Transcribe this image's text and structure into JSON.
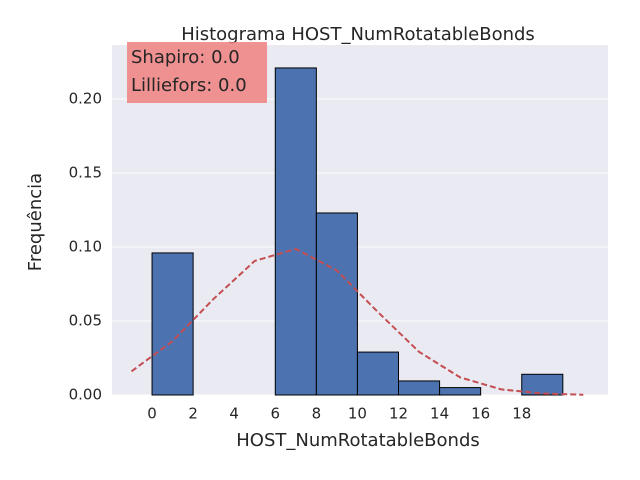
{
  "chart_data": {
    "type": "histogram",
    "title": "Histograma HOST_NumRotatableBonds",
    "xlabel": "HOST_NumRotatableBonds",
    "ylabel": "Frequência",
    "annotations": [
      "Shapiro: 0.0",
      "Lilliefors: 0.0"
    ],
    "bins": [
      0,
      2,
      4,
      6,
      8,
      10,
      12,
      14,
      16,
      18,
      20
    ],
    "values": [
      0.096,
      0,
      0,
      0.221,
      0.123,
      0.029,
      0.0095,
      0.005,
      0,
      0.014
    ],
    "color": "#4c72b0",
    "curve": {
      "type": "line",
      "color": "#c44e52",
      "dashed": true,
      "x": [
        -1,
        1,
        3,
        5,
        7,
        9,
        11,
        13,
        15,
        17,
        19,
        21
      ],
      "values": [
        0.016,
        0.0364,
        0.065,
        0.0906,
        0.0987,
        0.0841,
        0.056,
        0.0292,
        0.0119,
        0.0038,
        0.001,
        0.0002
      ]
    },
    "xlim": [
      -1.95,
      22.2
    ],
    "ylim": [
      0,
      0.2365
    ],
    "xticks": [
      0,
      2,
      4,
      6,
      8,
      10,
      12,
      14,
      16,
      18
    ],
    "yticks": [
      {
        "value": 0,
        "label": "0.00"
      },
      {
        "value": 0.05,
        "label": "0.05"
      },
      {
        "value": 0.1,
        "label": "0.10"
      },
      {
        "value": 0.15,
        "label": "0.15"
      },
      {
        "value": 0.2,
        "label": "0.20"
      }
    ],
    "grid": true
  }
}
